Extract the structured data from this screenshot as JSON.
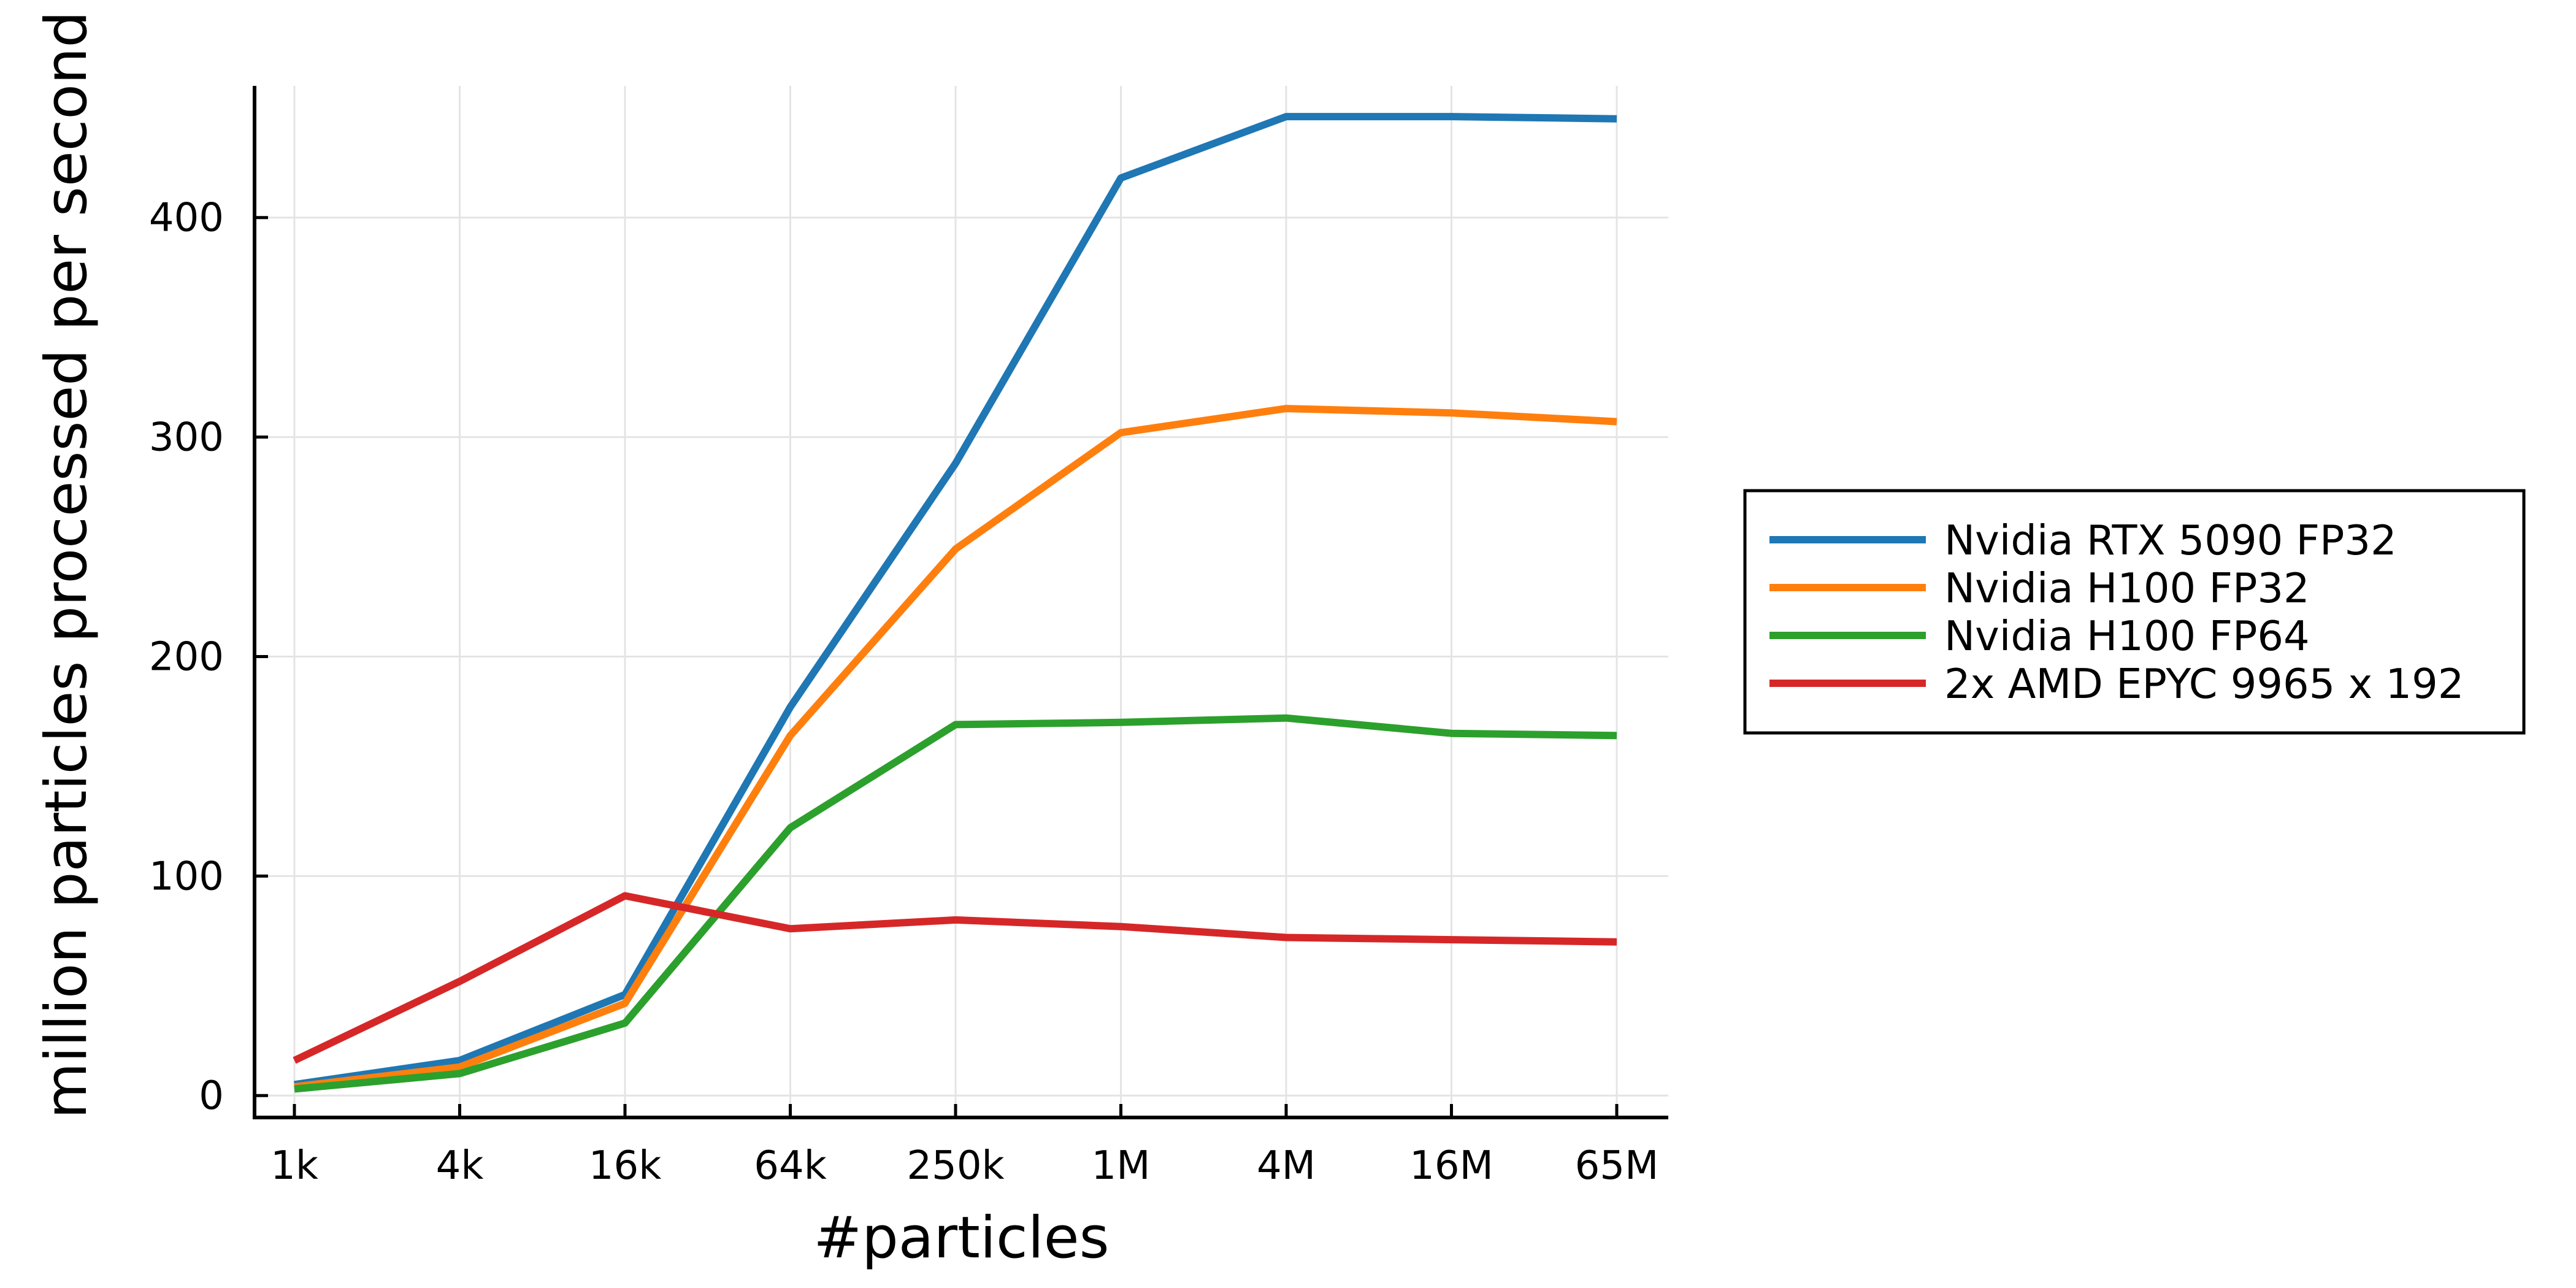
{
  "chart_data": {
    "type": "line",
    "xlabel": "#particles",
    "ylabel": "million particles processed per second",
    "categories": [
      "1k",
      "4k",
      "16k",
      "64k",
      "250k",
      "1M",
      "4M",
      "16M",
      "65M"
    ],
    "ylim": [
      -10,
      460
    ],
    "yticks": [
      0,
      100,
      200,
      300,
      400
    ],
    "grid": true,
    "legend_position": "right",
    "series": [
      {
        "name": "Nvidia RTX 5090 FP32",
        "color": "#1f77b4",
        "values": [
          5,
          16,
          46,
          177,
          288,
          418,
          446,
          446,
          445
        ]
      },
      {
        "name": "Nvidia H100 FP32",
        "color": "#ff7f0e",
        "values": [
          4,
          13,
          42,
          164,
          249,
          302,
          313,
          311,
          307
        ]
      },
      {
        "name": "Nvidia H100 FP64",
        "color": "#2ca02c",
        "values": [
          3,
          10,
          33,
          122,
          169,
          170,
          172,
          165,
          164
        ]
      },
      {
        "name": "2x AMD EPYC 9965 x 192",
        "color": "#d62728",
        "values": [
          16,
          52,
          91,
          76,
          80,
          77,
          72,
          71,
          70
        ]
      }
    ]
  }
}
